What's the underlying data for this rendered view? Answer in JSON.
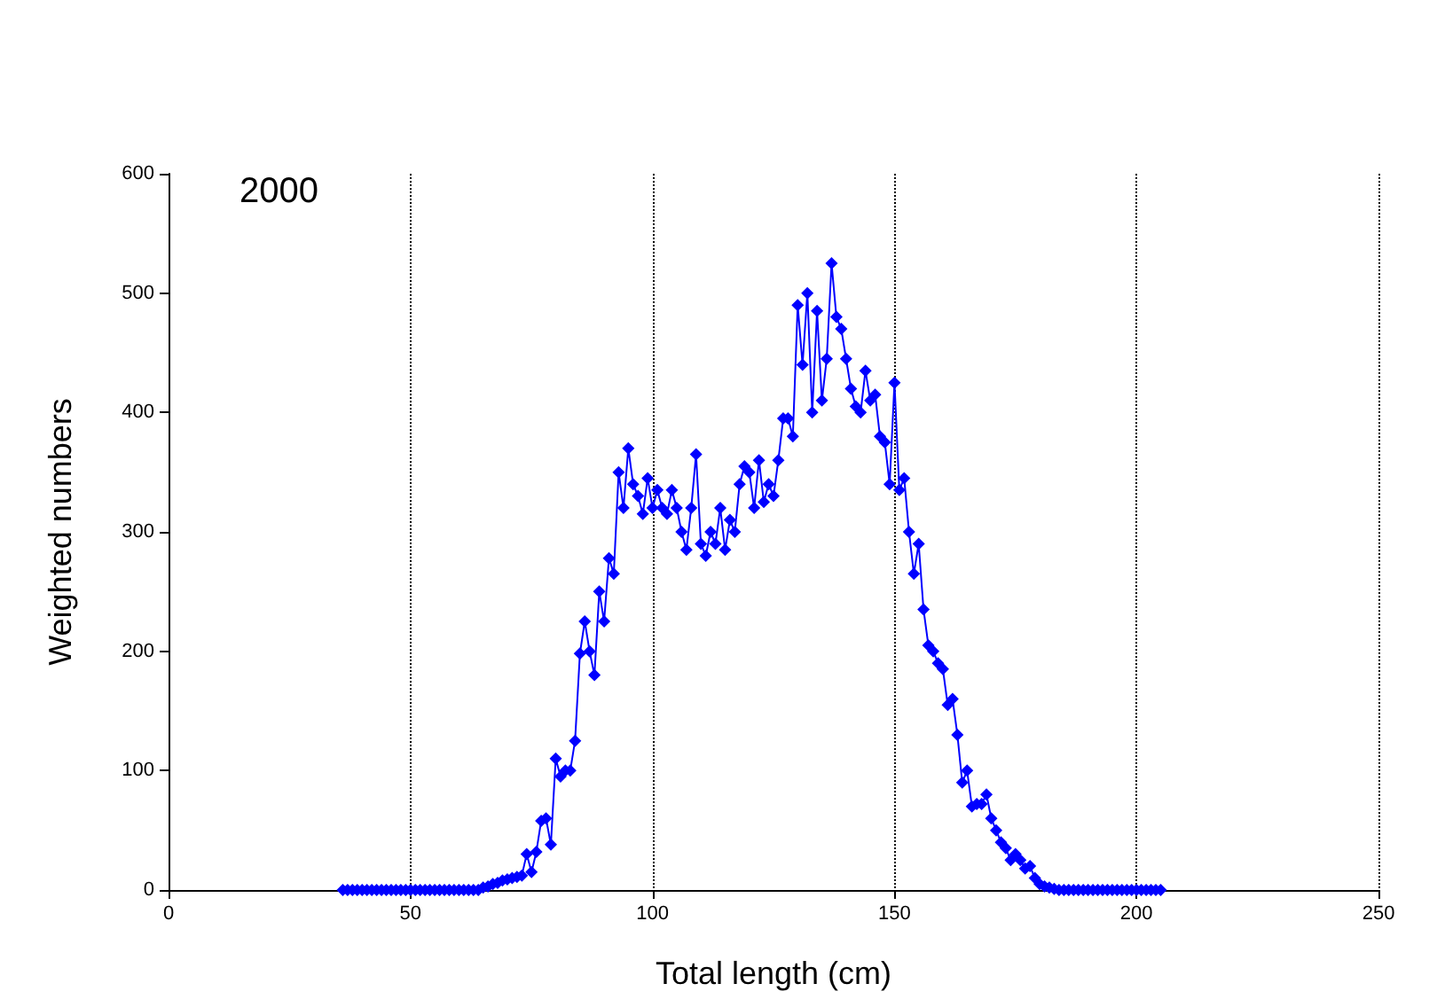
{
  "chart_data": {
    "type": "line",
    "xlabel": "Total length (cm)",
    "ylabel": "Weighted numbers",
    "annotations": [
      "2000"
    ],
    "x": [
      36,
      37,
      38,
      39,
      40,
      41,
      42,
      43,
      44,
      45,
      46,
      47,
      48,
      49,
      50,
      51,
      52,
      53,
      54,
      55,
      56,
      57,
      58,
      59,
      60,
      61,
      62,
      63,
      64,
      65,
      66,
      67,
      68,
      69,
      70,
      71,
      72,
      73,
      74,
      75,
      76,
      77,
      78,
      79,
      80,
      81,
      82,
      83,
      84,
      85,
      86,
      87,
      88,
      89,
      90,
      91,
      92,
      93,
      94,
      95,
      96,
      97,
      98,
      99,
      100,
      101,
      102,
      103,
      104,
      105,
      106,
      107,
      108,
      109,
      110,
      111,
      112,
      113,
      114,
      115,
      116,
      117,
      118,
      119,
      120,
      121,
      122,
      123,
      124,
      125,
      126,
      127,
      128,
      129,
      130,
      131,
      132,
      133,
      134,
      135,
      136,
      137,
      138,
      139,
      140,
      141,
      142,
      143,
      144,
      145,
      146,
      147,
      148,
      149,
      150,
      151,
      152,
      153,
      154,
      155,
      156,
      157,
      158,
      159,
      160,
      161,
      162,
      163,
      164,
      165,
      166,
      167,
      168,
      169,
      170,
      171,
      172,
      173,
      174,
      175,
      176,
      177,
      178,
      179,
      180,
      181,
      182,
      183,
      184,
      185,
      186,
      187,
      188,
      189,
      190,
      191,
      192,
      193,
      194,
      195,
      196,
      197,
      198,
      199,
      200,
      201,
      202,
      203,
      204,
      205
    ],
    "series": [
      {
        "color": "#0000ff",
        "values": [
          0,
          0,
          0,
          0,
          0,
          0,
          0,
          0,
          0,
          0,
          0,
          0,
          0,
          0,
          0,
          0,
          0,
          0,
          0,
          0,
          0,
          0,
          0,
          0,
          0,
          0,
          0,
          0,
          0,
          2,
          3,
          5,
          6,
          8,
          9,
          10,
          11,
          12,
          30,
          15,
          32,
          58,
          60,
          38,
          110,
          95,
          100,
          100,
          125,
          198,
          225,
          200,
          180,
          250,
          225,
          278,
          265,
          350,
          320,
          370,
          340,
          330,
          315,
          345,
          320,
          335,
          320,
          315,
          335,
          320,
          300,
          285,
          320,
          365,
          290,
          280,
          300,
          290,
          320,
          285,
          310,
          300,
          340,
          355,
          350,
          320,
          360,
          325,
          340,
          330,
          360,
          395,
          395,
          380,
          490,
          440,
          500,
          400,
          485,
          410,
          445,
          525,
          480,
          470,
          445,
          420,
          405,
          400,
          435,
          410,
          415,
          380,
          375,
          340,
          425,
          335,
          345,
          300,
          265,
          290,
          235,
          205,
          200,
          190,
          185,
          155,
          160,
          130,
          90,
          100,
          70,
          72,
          72,
          80,
          60,
          50,
          40,
          35,
          25,
          30,
          25,
          18,
          20,
          10,
          5,
          3,
          2,
          1,
          0,
          0,
          0,
          0,
          0,
          0,
          0,
          0,
          0,
          0,
          0,
          0,
          0,
          0,
          0,
          0,
          0,
          0,
          0,
          0,
          0,
          0
        ]
      }
    ],
    "xlim": [
      0,
      250
    ],
    "xticks": [
      0,
      50,
      100,
      150,
      200,
      250
    ],
    "ylim": [
      0,
      600
    ],
    "yticks": [
      0,
      100,
      200,
      300,
      400,
      500,
      600
    ],
    "grid": "x",
    "marker": "diamond",
    "line_style": "solid"
  }
}
